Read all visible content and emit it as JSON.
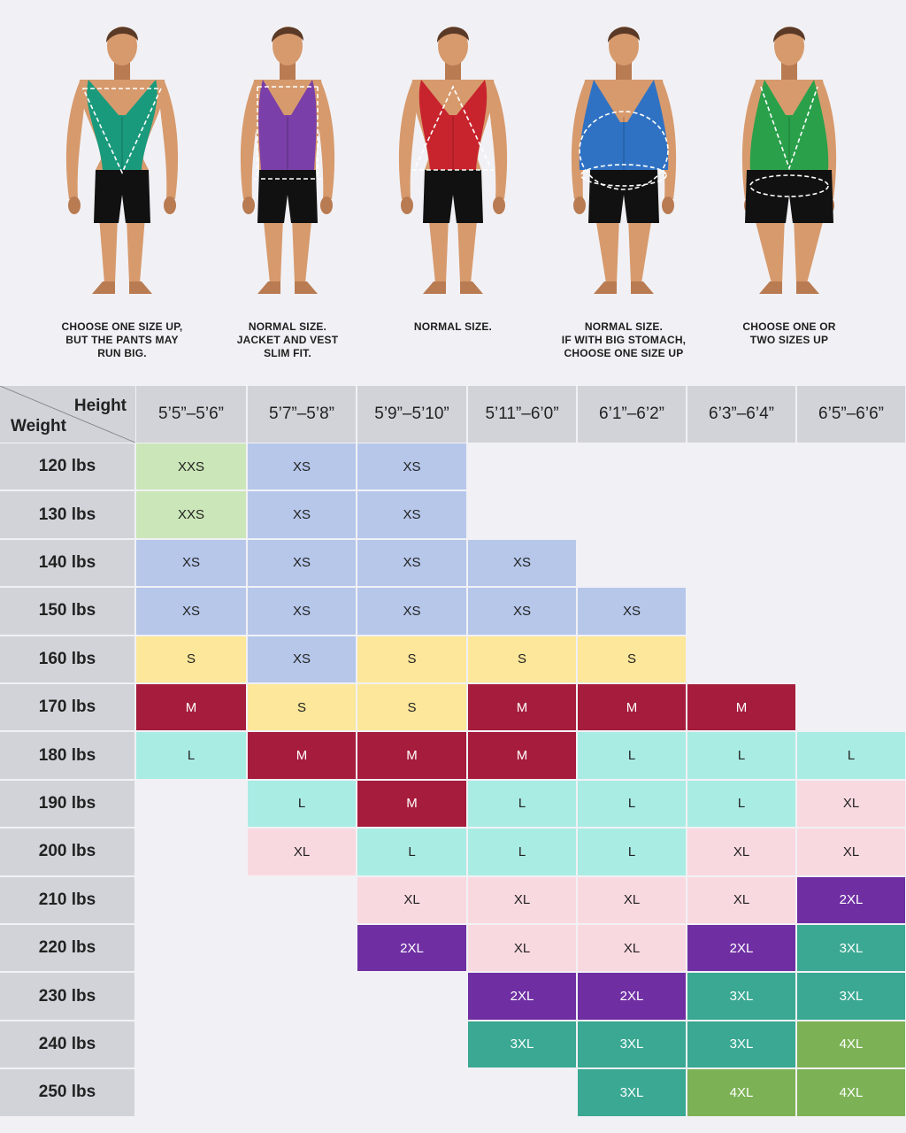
{
  "figures": [
    {
      "caption": "CHOOSE ONE SIZE UP,\nBUT THE PANTS MAY\nRUN BIG.",
      "vest_color": "#1a9a7c",
      "body": "inverted-triangle"
    },
    {
      "caption": "NORMAL SIZE.\nJACKET AND VEST\nSLIM FIT.",
      "vest_color": "#7a3fa8",
      "body": "rectangle"
    },
    {
      "caption": "NORMAL SIZE.",
      "vest_color": "#c8242d",
      "body": "athletic"
    },
    {
      "caption": "NORMAL SIZE.\nIF WITH BIG STOMACH,\nCHOOSE ONE SIZE UP",
      "vest_color": "#2f72c4",
      "body": "oval"
    },
    {
      "caption": "CHOOSE ONE OR\nTWO SIZES UP",
      "vest_color": "#2aa04a",
      "body": "triangle"
    }
  ],
  "table": {
    "corner_height_label": "Height",
    "corner_weight_label": "Weight",
    "heights": [
      "5’5”–5’6”",
      "5’7”–5’8”",
      "5’9”–5’10”",
      "5’11”–6’0”",
      "6’1”–6’2”",
      "6’3”–6’4”",
      "6’5”–6’6”"
    ],
    "weights": [
      "120 lbs",
      "130 lbs",
      "140 lbs",
      "150 lbs",
      "160 lbs",
      "170 lbs",
      "180 lbs",
      "190 lbs",
      "200 lbs",
      "210 lbs",
      "220 lbs",
      "230 lbs",
      "240 lbs",
      "250 lbs"
    ],
    "sizes": [
      [
        "XXS",
        "XS",
        "XS",
        "",
        "",
        "",
        ""
      ],
      [
        "XXS",
        "XS",
        "XS",
        "",
        "",
        "",
        ""
      ],
      [
        "XS",
        "XS",
        "XS",
        "XS",
        "",
        "",
        ""
      ],
      [
        "XS",
        "XS",
        "XS",
        "XS",
        "XS",
        "",
        ""
      ],
      [
        "S",
        "XS",
        "S",
        "S",
        "S",
        "",
        ""
      ],
      [
        "M",
        "S",
        "S",
        "M",
        "M",
        "M",
        ""
      ],
      [
        "L",
        "M",
        "M",
        "M",
        "L",
        "L",
        "L"
      ],
      [
        "",
        "L",
        "M",
        "L",
        "L",
        "L",
        "XL"
      ],
      [
        "",
        "XL",
        "L",
        "L",
        "L",
        "XL",
        "XL"
      ],
      [
        "",
        "",
        "XL",
        "XL",
        "XL",
        "XL",
        "2XL"
      ],
      [
        "",
        "",
        "2XL",
        "XL",
        "XL",
        "2XL",
        "3XL"
      ],
      [
        "",
        "",
        "",
        "2XL",
        "2XL",
        "3XL",
        "3XL"
      ],
      [
        "",
        "",
        "",
        "3XL",
        "3XL",
        "3XL",
        "4XL"
      ],
      [
        "",
        "",
        "",
        "",
        "3XL",
        "4XL",
        "4XL"
      ]
    ],
    "size_colors": {
      "XXS": "#cbe6b8",
      "XS": "#b6c7ea",
      "S": "#fce79a",
      "M": "#a61c3c",
      "L": "#a9ece4",
      "XL": "#f9d9e0",
      "2XL": "#6f2fa3",
      "3XL": "#3aa892",
      "4XL": "#7cb255"
    },
    "white_text_sizes": [
      "M",
      "2XL",
      "3XL",
      "4XL"
    ]
  }
}
